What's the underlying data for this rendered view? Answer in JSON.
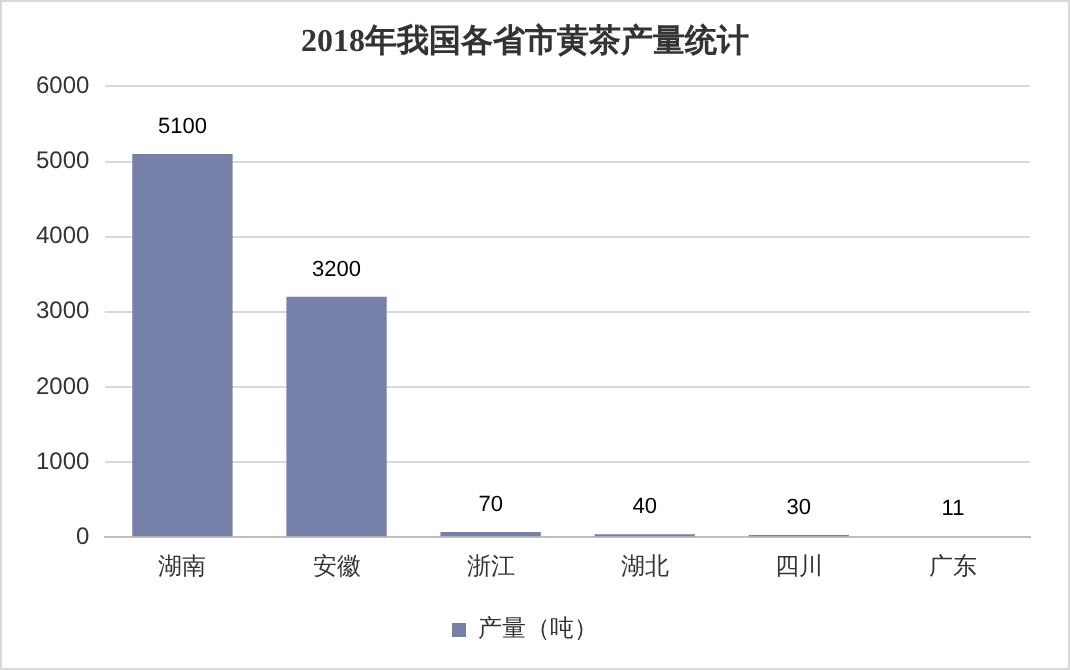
{
  "chart_data": {
    "type": "bar",
    "title": "2018年我国各省市黄茶产量统计",
    "categories": [
      "湖南",
      "安徽",
      "浙江",
      "湖北",
      "四川",
      "广东"
    ],
    "series": [
      {
        "name": "产量（吨）",
        "color": "#7780a8",
        "values": [
          5100,
          3200,
          70,
          40,
          30,
          11
        ]
      }
    ],
    "ylim": [
      0,
      6000
    ],
    "yticks": [
      0,
      1000,
      2000,
      3000,
      4000,
      5000,
      6000
    ],
    "grid": "y",
    "legend": "bottom",
    "data_labels": true
  }
}
